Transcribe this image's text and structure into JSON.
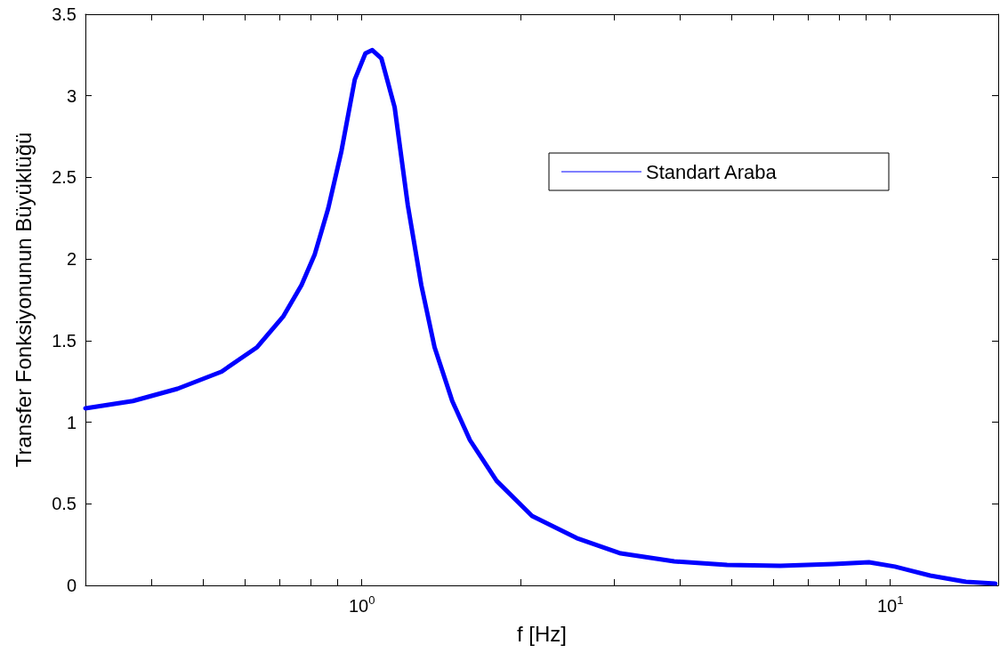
{
  "chart_data": {
    "type": "line",
    "xlabel": "f [Hz]",
    "ylabel": "Transfer Fonksiyonunun Büyüklüğü",
    "log": "x",
    "xlim": [
      0.3,
      16
    ],
    "ylim": [
      0,
      3.5
    ],
    "xticks": [
      {
        "value": 0.4,
        "label": null
      },
      {
        "value": 0.5,
        "label": null
      },
      {
        "value": 0.6,
        "label": null
      },
      {
        "value": 0.7,
        "label": null
      },
      {
        "value": 0.8,
        "label": null
      },
      {
        "value": 0.9,
        "label": null
      },
      {
        "value": 1,
        "label": "10$^{0}$"
      },
      {
        "value": 2,
        "label": null
      },
      {
        "value": 3,
        "label": null
      },
      {
        "value": 4,
        "label": null
      },
      {
        "value": 5,
        "label": null
      },
      {
        "value": 6,
        "label": null
      },
      {
        "value": 7,
        "label": null
      },
      {
        "value": 8,
        "label": null
      },
      {
        "value": 9,
        "label": null
      },
      {
        "value": 10,
        "label": "10$^{1}$"
      }
    ],
    "yticks": [
      0,
      0.5,
      1,
      1.5,
      2,
      2.5,
      3,
      3.5
    ],
    "grid": false,
    "legend": "top right",
    "marker": "none",
    "line_style": "solid",
    "series": [
      {
        "name": "Standart Araba",
        "color": "#0000ff",
        "x": [
          0.3,
          0.369,
          0.448,
          0.543,
          0.634,
          0.711,
          0.769,
          0.815,
          0.864,
          0.915,
          0.97,
          1.016,
          1.047,
          1.089,
          1.154,
          1.222,
          1.296,
          1.373,
          1.483,
          1.602,
          1.8,
          2.1,
          2.55,
          3.09,
          3.9,
          4.91,
          6.19,
          7.81,
          9.11,
          10.2,
          11.9,
          13.9,
          15.8
        ],
        "values": [
          1.085,
          1.13,
          1.205,
          1.31,
          1.46,
          1.65,
          1.84,
          2.03,
          2.31,
          2.66,
          3.1,
          3.26,
          3.28,
          3.23,
          2.93,
          2.33,
          1.84,
          1.46,
          1.13,
          0.89,
          0.64,
          0.425,
          0.29,
          0.196,
          0.147,
          0.125,
          0.12,
          0.131,
          0.142,
          0.115,
          0.06,
          0.022,
          0.011
        ]
      }
    ]
  }
}
